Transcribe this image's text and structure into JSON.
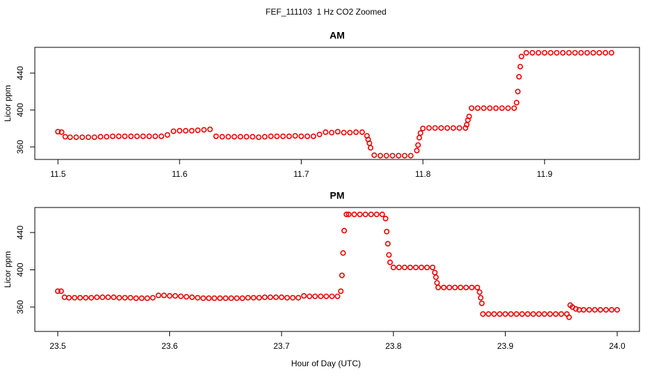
{
  "title": "FEF_111103  1 Hz CO2 Zoomed",
  "xlabel": "Hour of Day (UTC)",
  "chart_data": [
    {
      "type": "scatter",
      "title": "AM",
      "ylabel": "Licor ppm",
      "color": "#ee0000",
      "xlim": [
        11.481,
        11.978
      ],
      "ylim": [
        346.4,
        467.9
      ],
      "xticks": [
        11.5,
        11.6,
        11.7,
        11.8,
        11.9
      ],
      "yticks": [
        360,
        400,
        440
      ],
      "x": [
        11.5,
        11.503,
        11.506,
        11.51,
        11.515,
        11.52,
        11.525,
        11.53,
        11.535,
        11.54,
        11.545,
        11.55,
        11.555,
        11.56,
        11.565,
        11.57,
        11.575,
        11.58,
        11.585,
        11.59,
        11.595,
        11.6,
        11.605,
        11.61,
        11.615,
        11.62,
        11.625,
        11.63,
        11.635,
        11.64,
        11.645,
        11.65,
        11.655,
        11.66,
        11.665,
        11.67,
        11.675,
        11.68,
        11.685,
        11.69,
        11.695,
        11.7,
        11.705,
        11.71,
        11.715,
        11.72,
        11.725,
        11.73,
        11.735,
        11.74,
        11.745,
        11.75,
        11.754,
        11.755,
        11.756,
        11.757,
        11.76,
        11.765,
        11.77,
        11.775,
        11.78,
        11.785,
        11.79,
        11.795,
        11.796,
        11.797,
        11.798,
        11.8,
        11.805,
        11.81,
        11.815,
        11.82,
        11.825,
        11.83,
        11.835,
        11.836,
        11.837,
        11.838,
        11.84,
        11.845,
        11.85,
        11.855,
        11.86,
        11.865,
        11.87,
        11.875,
        11.877,
        11.878,
        11.879,
        11.88,
        11.881,
        11.885,
        11.89,
        11.895,
        11.9,
        11.905,
        11.91,
        11.915,
        11.92,
        11.925,
        11.93,
        11.935,
        11.94,
        11.945,
        11.95,
        11.955
      ],
      "values": [
        376.5,
        376,
        371,
        370.5,
        370.5,
        370.5,
        370.5,
        370.5,
        371,
        371,
        371.5,
        371.5,
        371.5,
        371.5,
        371.5,
        371.5,
        371.5,
        371.5,
        371.5,
        373,
        377,
        377.5,
        377.5,
        377.5,
        378,
        378.5,
        379,
        371.5,
        371,
        371,
        371,
        371,
        371,
        371,
        370.5,
        371,
        371.5,
        371.5,
        371.5,
        371.5,
        372,
        371.5,
        371.5,
        371.5,
        373.5,
        376,
        375.5,
        376.5,
        375.5,
        375.5,
        376,
        376,
        372,
        368,
        364,
        359,
        351,
        350.5,
        350.5,
        350.5,
        350.5,
        350.5,
        350.5,
        356,
        362,
        370,
        375,
        380,
        380.5,
        380.5,
        380.5,
        380.5,
        380.5,
        380.5,
        380.5,
        384,
        389,
        393,
        402,
        402,
        402,
        402,
        402,
        402,
        402,
        402,
        408,
        420,
        436,
        447,
        458,
        462,
        462,
        462,
        462,
        462,
        462,
        462,
        462,
        462,
        462,
        462,
        462,
        462,
        462,
        462
      ]
    },
    {
      "type": "scatter",
      "title": "PM",
      "ylabel": "Licor ppm",
      "color": "#ee0000",
      "xlim": [
        23.4795,
        24.0199
      ],
      "ylim": [
        333.8,
        466.9
      ],
      "xticks": [
        23.5,
        23.6,
        23.7,
        23.8,
        23.9,
        {
          "value": 24,
          "label": "24.0"
        }
      ],
      "yticks": [
        360,
        400,
        440
      ],
      "x": [
        23.5,
        23.503,
        23.506,
        23.51,
        23.515,
        23.52,
        23.525,
        23.53,
        23.535,
        23.54,
        23.545,
        23.55,
        23.555,
        23.56,
        23.565,
        23.57,
        23.575,
        23.58,
        23.585,
        23.59,
        23.595,
        23.6,
        23.605,
        23.61,
        23.615,
        23.62,
        23.625,
        23.63,
        23.635,
        23.64,
        23.645,
        23.65,
        23.655,
        23.66,
        23.665,
        23.67,
        23.675,
        23.68,
        23.685,
        23.69,
        23.695,
        23.7,
        23.705,
        23.71,
        23.715,
        23.72,
        23.725,
        23.73,
        23.735,
        23.74,
        23.745,
        23.75,
        23.753,
        23.754,
        23.755,
        23.756,
        23.758,
        23.76,
        23.765,
        23.77,
        23.775,
        23.78,
        23.785,
        23.79,
        23.793,
        23.794,
        23.795,
        23.796,
        23.797,
        23.8,
        23.805,
        23.81,
        23.815,
        23.82,
        23.825,
        23.83,
        23.835,
        23.837,
        23.838,
        23.839,
        23.84,
        23.845,
        23.85,
        23.855,
        23.86,
        23.865,
        23.87,
        23.875,
        23.877,
        23.878,
        23.879,
        23.88,
        23.885,
        23.89,
        23.895,
        23.9,
        23.905,
        23.91,
        23.915,
        23.92,
        23.925,
        23.93,
        23.935,
        23.94,
        23.945,
        23.95,
        23.955,
        23.957,
        23.958,
        23.96,
        23.963,
        23.966,
        23.97,
        23.975,
        23.98,
        23.985,
        23.99,
        23.995,
        24.0
      ],
      "values": [
        377,
        377,
        370.5,
        370,
        370,
        370,
        370,
        370,
        370.5,
        370.5,
        370.5,
        370.5,
        370,
        370,
        370,
        369.5,
        369.5,
        369.5,
        370,
        372.5,
        372.5,
        372,
        372,
        371.5,
        371,
        370.5,
        370,
        369.5,
        369.5,
        369.5,
        369.5,
        369.5,
        369.5,
        369.5,
        369.5,
        370,
        370,
        370,
        370.5,
        370.5,
        370.5,
        370.5,
        370,
        370,
        370,
        372,
        371.5,
        371.5,
        371.5,
        371.5,
        371.5,
        371.5,
        377,
        394,
        418,
        442,
        459.5,
        459.5,
        459.5,
        459.5,
        459.5,
        459.5,
        459.5,
        459.5,
        455,
        441,
        428,
        416,
        408,
        402.5,
        402.5,
        402.5,
        402.5,
        402.5,
        402.5,
        402.5,
        402.5,
        397,
        392,
        386,
        381,
        381,
        381,
        381,
        381,
        381,
        381,
        381,
        376,
        370,
        364,
        352.5,
        352.5,
        352.5,
        352.5,
        352.5,
        352.5,
        352.5,
        352.5,
        352.5,
        352.5,
        352.5,
        352.5,
        352.5,
        352.5,
        352.5,
        352.5,
        349,
        362,
        360,
        358,
        357,
        357,
        357,
        357,
        357,
        357,
        357,
        357
      ]
    }
  ]
}
